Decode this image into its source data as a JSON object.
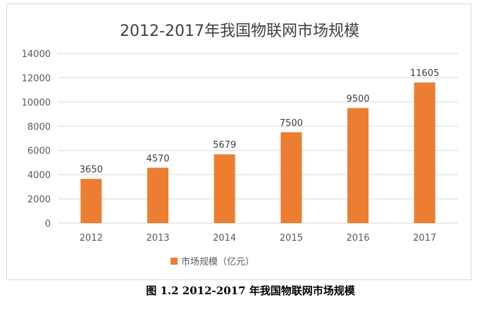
{
  "chart_data": {
    "type": "bar",
    "title": "2012-2017年我国物联网市场规模",
    "categories": [
      "2012",
      "2013",
      "2014",
      "2015",
      "2016",
      "2017"
    ],
    "series": [
      {
        "name": "市场规模（亿元）",
        "values": [
          3650,
          4570,
          5679,
          7500,
          9500,
          11605
        ],
        "color": "#ed7d31"
      }
    ],
    "data_labels": [
      "3650",
      "4570",
      "5679",
      "7500",
      "9500",
      "11605"
    ],
    "ylim": [
      0,
      14000
    ],
    "yticks": [
      0,
      2000,
      4000,
      6000,
      8000,
      10000,
      12000,
      14000
    ],
    "grid": true,
    "legend": "bottom"
  },
  "caption": {
    "label": "图 1.2",
    "text": "2012-2017 年我国物联网市场规模"
  }
}
